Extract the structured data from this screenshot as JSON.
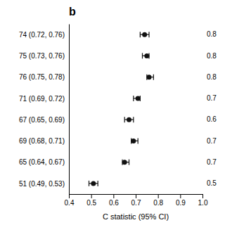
{
  "chart_data": {
    "type": "forest",
    "title": "b",
    "xlabel": "C statistic (95% CI)",
    "categories": [
      "74 (0.72, 0.76)",
      "75 (0.73, 0.76)",
      "76 (0.75, 0.78)",
      "71 (0.69, 0.72)",
      "67 (0.65, 0.69)",
      "69 (0.68, 0.71)",
      "65 (0.64, 0.67)",
      "51 (0.49, 0.53)"
    ],
    "values": [
      0.74,
      0.75,
      0.76,
      0.71,
      0.67,
      0.69,
      0.65,
      0.51
    ],
    "ci_low": [
      0.72,
      0.73,
      0.75,
      0.69,
      0.65,
      0.68,
      0.64,
      0.49
    ],
    "ci_high": [
      0.76,
      0.76,
      0.78,
      0.72,
      0.69,
      0.71,
      0.67,
      0.53
    ],
    "right_labels": [
      "0.8",
      "0.8",
      "0.8",
      "0.7",
      "0.6",
      "0.7",
      "0.7",
      "0.5"
    ],
    "xlim": [
      0.4,
      1.0
    ],
    "xticks": [
      0.4,
      0.5,
      0.6,
      0.7,
      0.8,
      0.9,
      {
        "value": 1,
        "label": "1.0"
      }
    ],
    "color": "#111111"
  }
}
